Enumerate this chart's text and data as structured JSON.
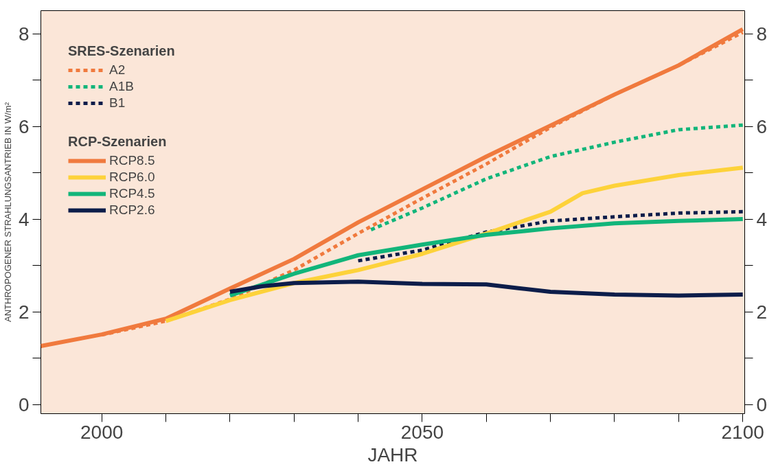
{
  "chart_data": {
    "type": "line",
    "xlabel": "JAHR",
    "ylabel": "ANTHROPOGENER STRAHLUNGSANTRIEB IN W/m²",
    "legend_title": [
      "SRES-Szenarien",
      "RCP-Szenarien"
    ],
    "legend": "top left",
    "grid": false,
    "line_style": "solid",
    "xlim": [
      1990.5,
      2100.3
    ],
    "ylim": [
      -0.2,
      8.5
    ],
    "y2lim": [
      -0.2,
      8.5
    ],
    "xticks": [
      2000,
      {
        "value": 2010,
        "label": null
      },
      {
        "value": 2020,
        "label": null
      },
      {
        "value": 2030,
        "label": null
      },
      {
        "value": 2040,
        "label": null
      },
      2050,
      {
        "value": 2060,
        "label": null
      },
      {
        "value": 2070,
        "label": null
      },
      {
        "value": 2080,
        "label": null
      },
      {
        "value": 2090,
        "label": null
      },
      2100
    ],
    "yticks": [
      0,
      {
        "value": 1,
        "label": null
      },
      2,
      {
        "value": 3,
        "label": null
      },
      4,
      {
        "value": 5,
        "label": null
      },
      6,
      {
        "value": 7,
        "label": null
      },
      8
    ],
    "y2ticks": [
      0,
      {
        "value": 1,
        "label": null
      },
      2,
      {
        "value": 3,
        "label": null
      },
      4,
      {
        "value": 5,
        "label": null
      },
      6,
      {
        "value": 7,
        "label": null
      },
      8
    ],
    "series": [
      {
        "name": "A2",
        "color": "#f07a3e",
        "line_style": "dotted",
        "x": [
          2000,
          2010,
          2020,
          2030,
          2040,
          2050,
          2060,
          2070,
          2080,
          2090,
          2100
        ],
        "values": [
          1.5,
          1.8,
          2.27,
          2.9,
          3.69,
          4.45,
          5.19,
          5.98,
          6.69,
          7.32,
          8.03
        ]
      },
      {
        "name": "A1B",
        "color": "#12b57a",
        "line_style": "dotted",
        "x": [
          2042,
          2050,
          2060,
          2070,
          2080,
          2090,
          2100
        ],
        "values": [
          3.77,
          4.24,
          4.87,
          5.35,
          5.66,
          5.93,
          6.03
        ]
      },
      {
        "name": "B1",
        "color": "#0c1d4a",
        "line_style": "dotted",
        "x": [
          2040,
          2050,
          2060,
          2070,
          2080,
          2090,
          2100
        ],
        "values": [
          3.1,
          3.33,
          3.72,
          3.96,
          4.05,
          4.13,
          4.16
        ]
      },
      {
        "name": "RCP8.5",
        "color": "#f07a3e",
        "x": [
          1990.5,
          2000,
          2010,
          2020,
          2030,
          2040,
          2050,
          2060,
          2070,
          2080,
          2090,
          2100
        ],
        "values": [
          1.26,
          1.51,
          1.85,
          2.5,
          3.14,
          3.93,
          4.64,
          5.35,
          6.02,
          6.69,
          7.32,
          8.1
        ]
      },
      {
        "name": "RCP6.0",
        "color": "#fdd23a",
        "x": [
          2010,
          2020,
          2030,
          2040,
          2050,
          2060,
          2070,
          2075,
          2080,
          2090,
          2100
        ],
        "values": [
          1.8,
          2.25,
          2.62,
          2.9,
          3.25,
          3.69,
          4.16,
          4.56,
          4.72,
          4.95,
          5.11
        ]
      },
      {
        "name": "RCP4.5",
        "color": "#12b57a",
        "x": [
          2020,
          2030,
          2040,
          2050,
          2060,
          2070,
          2080,
          2090,
          2100
        ],
        "values": [
          2.35,
          2.82,
          3.22,
          3.45,
          3.66,
          3.8,
          3.91,
          3.96,
          4.0
        ]
      },
      {
        "name": "RCP2.6",
        "color": "#0c1d4a",
        "x": [
          2020,
          2025,
          2030,
          2040,
          2050,
          2060,
          2065,
          2070,
          2080,
          2090,
          2100
        ],
        "values": [
          2.43,
          2.55,
          2.62,
          2.65,
          2.6,
          2.59,
          2.51,
          2.43,
          2.37,
          2.35,
          2.37
        ]
      }
    ]
  }
}
